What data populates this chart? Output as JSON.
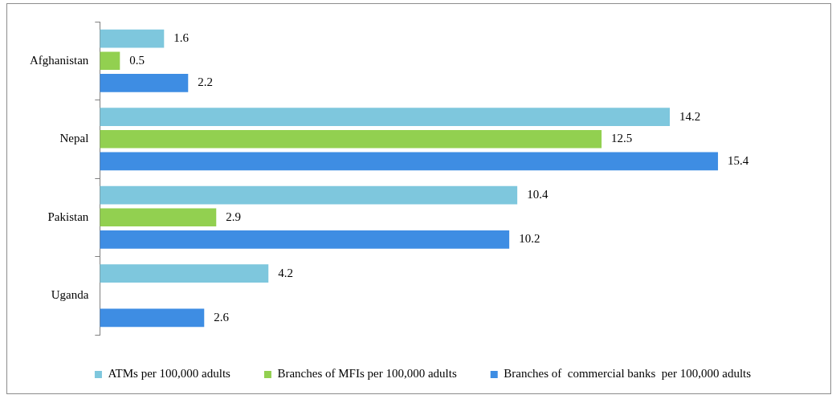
{
  "chart_data": {
    "type": "bar",
    "orientation": "horizontal",
    "categories": [
      "Afghanistan",
      "Nepal",
      "Pakistan",
      "Uganda"
    ],
    "series": [
      {
        "name": "ATMs per 100,000 adults",
        "color": "#7ec7dd",
        "values": [
          1.6,
          14.2,
          10.4,
          4.2
        ]
      },
      {
        "name": "Branches of MFIs per 100,000 adults",
        "color": "#92d050",
        "values": [
          0.5,
          12.5,
          2.9,
          null
        ]
      },
      {
        "name": "Branches of  commercial banks  per 100,000 adults",
        "color": "#3e8de3",
        "values": [
          2.2,
          15.4,
          10.2,
          2.6
        ]
      }
    ],
    "data_labels": true,
    "grid": false,
    "legend": "bottom",
    "tick_labels": "y"
  }
}
